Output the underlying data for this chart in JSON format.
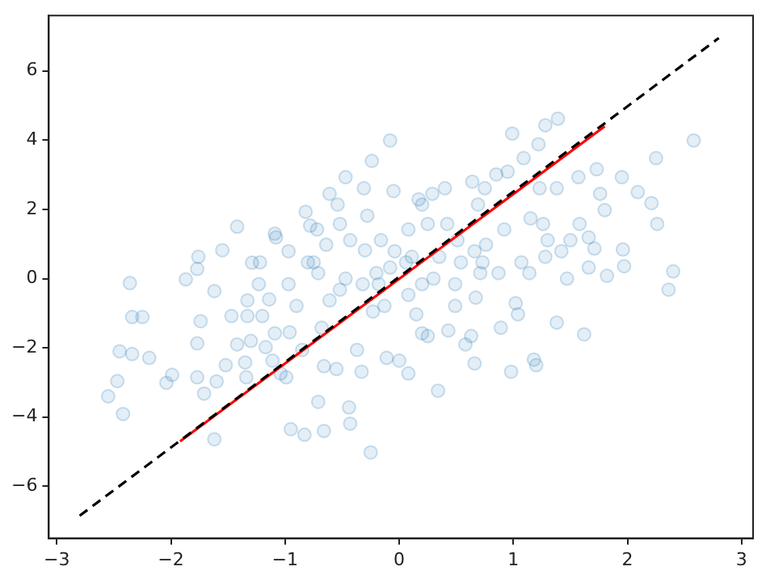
{
  "chart_data": {
    "type": "scatter",
    "xlim": [
      -3.07,
      3.1
    ],
    "ylim": [
      -7.5,
      7.6
    ],
    "xticks": [
      -3,
      -2,
      -1,
      0,
      1,
      2,
      3
    ],
    "yticks": [
      -6,
      -4,
      -2,
      0,
      2,
      4,
      6
    ],
    "grid": false,
    "legend": false,
    "series": [
      {
        "color": "#1f77b4",
        "marker": "circle",
        "x": [
          -2.36,
          -2.34,
          -2.25,
          -2.45,
          -2.34,
          -2.19,
          -2.55,
          -2.47,
          -2.42,
          -2.04,
          -1.99,
          -1.87,
          -1.76,
          -1.77,
          -1.74,
          -1.77,
          -1.77,
          -1.71,
          -1.62,
          -1.6,
          -1.62,
          -1.55,
          -1.52,
          -1.47,
          -1.42,
          -1.35,
          -1.34,
          -1.33,
          -1.3,
          -1.29,
          -1.22,
          -1.23,
          -1.2,
          -1.14,
          -1.17,
          -1.09,
          -1.08,
          -1.09,
          -1.04,
          -0.99,
          -0.97,
          -0.95,
          -0.83,
          -0.96,
          -0.97,
          -0.82,
          -0.8,
          -0.78,
          -0.75,
          -0.72,
          -0.71,
          -0.66,
          -0.66,
          -0.68,
          -0.61,
          -0.52,
          -0.54,
          -0.64,
          -0.55,
          -0.47,
          -0.44,
          -0.43,
          -0.43,
          -0.52,
          -0.31,
          -0.28,
          -0.3,
          -0.25,
          -0.33,
          -0.37,
          -0.24,
          -0.08,
          -0.05,
          -0.16,
          -0.2,
          -0.13,
          -0.11,
          0.0,
          0.08,
          -0.04,
          0.08,
          0.11,
          0.08,
          0.17,
          0.2,
          0.25,
          0.29,
          0.2,
          0.25,
          0.15,
          0.3,
          0.34,
          0.4,
          0.42,
          0.43,
          0.49,
          0.49,
          0.51,
          0.58,
          0.64,
          0.63,
          0.66,
          0.67,
          0.66,
          0.69,
          0.71,
          0.75,
          0.76,
          0.89,
          0.85,
          0.95,
          0.92,
          0.99,
          0.98,
          1.02,
          1.04,
          1.09,
          1.07,
          1.14,
          1.15,
          1.18,
          1.2,
          1.22,
          1.23,
          1.26,
          1.28,
          1.28,
          1.39,
          1.38,
          1.38,
          1.3,
          1.42,
          1.47,
          1.5,
          1.57,
          1.58,
          1.62,
          1.66,
          1.66,
          1.71,
          1.73,
          1.76,
          1.8,
          1.82,
          1.95,
          1.96,
          1.97,
          2.09,
          2.21,
          2.25,
          2.26,
          2.36,
          2.4,
          2.58,
          -0.71,
          -0.61,
          -0.47,
          -0.32,
          -0.23,
          -0.18,
          -0.08,
          0.06,
          0.2,
          0.35,
          0.54,
          0.73,
          0.87,
          -0.9,
          -0.85,
          -1.42,
          -1.33,
          -1.11
        ],
        "values": [
          -0.13,
          -1.11,
          -1.11,
          -2.1,
          -2.18,
          -2.29,
          -3.4,
          -2.96,
          -3.91,
          -3.01,
          -2.78,
          -0.02,
          0.63,
          0.28,
          -1.23,
          -1.87,
          -2.85,
          -3.32,
          -4.64,
          -2.97,
          -0.36,
          0.82,
          -2.5,
          -1.08,
          1.5,
          -2.42,
          -2.85,
          -1.08,
          -1.8,
          0.46,
          0.47,
          -0.16,
          -1.08,
          -0.6,
          -1.98,
          1.3,
          1.19,
          -1.58,
          -2.74,
          -2.85,
          0.79,
          -4.35,
          -4.51,
          -1.55,
          -0.16,
          1.93,
          0.47,
          1.53,
          0.47,
          1.42,
          -3.56,
          -4.4,
          -2.53,
          -1.42,
          2.45,
          1.58,
          2.14,
          0.98,
          -2.61,
          2.93,
          -3.72,
          -4.19,
          1.11,
          -0.32,
          2.61,
          1.82,
          0.82,
          -5.02,
          -2.69,
          -2.06,
          3.4,
          3.99,
          2.53,
          1.11,
          0.16,
          -0.79,
          -2.29,
          -2.37,
          -2.74,
          0.79,
          1.42,
          0.63,
          -0.47,
          2.29,
          2.14,
          1.58,
          2.45,
          -1.58,
          -1.66,
          -1.03,
          0.0,
          -3.24,
          2.61,
          1.58,
          -1.5,
          -0.79,
          -0.16,
          1.11,
          -1.9,
          2.8,
          -1.66,
          -2.45,
          -0.55,
          0.79,
          2.14,
          0.16,
          2.61,
          0.98,
          -1.42,
          3.01,
          3.09,
          1.42,
          4.19,
          -2.69,
          -0.71,
          -1.03,
          3.48,
          0.47,
          0.16,
          1.74,
          -2.34,
          -2.5,
          3.88,
          2.61,
          1.58,
          0.63,
          4.43,
          4.62,
          -1.27,
          2.61,
          1.11,
          0.79,
          0.0,
          1.11,
          2.93,
          1.58,
          -1.61,
          0.32,
          1.19,
          0.87,
          3.16,
          2.45,
          1.98,
          0.08,
          2.93,
          0.84,
          0.36,
          2.5,
          2.18,
          3.48,
          1.58,
          -0.32,
          0.21,
          3.99,
          0.16,
          -0.63,
          0.0,
          -0.16,
          -0.95,
          -0.16,
          0.32,
          0.47,
          -0.16,
          0.63,
          0.47,
          0.47,
          0.16,
          -0.79,
          -2.06,
          -1.9,
          -0.63,
          -2.37
        ]
      },
      {
        "type": "line",
        "color": "#ff0000",
        "marker": "none",
        "line_style": "solid",
        "x": [
          -1.92,
          1.8
        ],
        "values": [
          -4.7,
          4.4
        ]
      },
      {
        "type": "line",
        "color": "#000000",
        "marker": "none",
        "line_style": "dashed",
        "x": [
          -2.8,
          2.8
        ],
        "values": [
          -6.85,
          6.95
        ]
      }
    ]
  }
}
